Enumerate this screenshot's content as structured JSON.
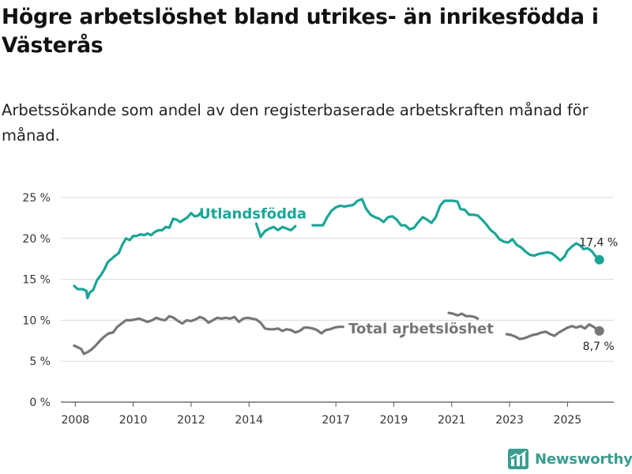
{
  "header": {
    "title": "Högre arbetslöshet bland utrikes- än inrikesfödda i Västerås",
    "subtitle": "Arbetssökande som andel av den registerbaserade arbetskraften månad för månad."
  },
  "branding": {
    "name": "Newsworthy",
    "color": "#3b9d8f",
    "icon": "newsworthy-logo-icon"
  },
  "chart_data": {
    "type": "line",
    "title": "Högre arbetslöshet bland utrikes- än inrikesfödda i Västerås",
    "subtitle": "Arbetssökande som andel av den registerbaserade arbetskraften månad för månad.",
    "xlabel": "",
    "ylabel": "",
    "x_range": [
      2007.5,
      2026.6
    ],
    "ylim": [
      0,
      25
    ],
    "grid": true,
    "y_ticks": [
      {
        "value": 0,
        "label": "0 %"
      },
      {
        "value": 5,
        "label": "5 %"
      },
      {
        "value": 10,
        "label": "10 %"
      },
      {
        "value": 15,
        "label": "15 %"
      },
      {
        "value": 20,
        "label": "20 %"
      },
      {
        "value": 25,
        "label": "25 %"
      }
    ],
    "x_ticks": [
      {
        "value": 2008,
        "label": "2008"
      },
      {
        "value": 2010,
        "label": "2010"
      },
      {
        "value": 2012,
        "label": "2012"
      },
      {
        "value": 2014,
        "label": "2014"
      },
      {
        "value": 2017,
        "label": "2017"
      },
      {
        "value": 2019,
        "label": "2019"
      },
      {
        "value": 2021,
        "label": "2021"
      },
      {
        "value": 2023,
        "label": "2023"
      },
      {
        "value": 2025,
        "label": "2025"
      }
    ],
    "series": [
      {
        "name": "Utlandsfödda",
        "color": "#1aa596",
        "end_label": "17,4 %",
        "points": [
          [
            2007.96,
            14.2
          ],
          [
            2008.08,
            13.8
          ],
          [
            2008.25,
            13.8
          ],
          [
            2008.38,
            13.6
          ],
          [
            2008.42,
            12.7
          ],
          [
            2008.5,
            13.4
          ],
          [
            2008.62,
            13.7
          ],
          [
            2008.75,
            14.9
          ],
          [
            2008.88,
            15.5
          ],
          [
            2009.0,
            16.2
          ],
          [
            2009.12,
            17.1
          ],
          [
            2009.25,
            17.5
          ],
          [
            2009.38,
            17.9
          ],
          [
            2009.5,
            18.2
          ],
          [
            2009.62,
            19.2
          ],
          [
            2009.75,
            20.0
          ],
          [
            2009.88,
            19.8
          ],
          [
            2010.0,
            20.3
          ],
          [
            2010.12,
            20.3
          ],
          [
            2010.25,
            20.5
          ],
          [
            2010.38,
            20.4
          ],
          [
            2010.5,
            20.6
          ],
          [
            2010.62,
            20.4
          ],
          [
            2010.75,
            20.8
          ],
          [
            2010.88,
            21.0
          ],
          [
            2011.0,
            21.0
          ],
          [
            2011.12,
            21.4
          ],
          [
            2011.25,
            21.3
          ],
          [
            2011.38,
            22.4
          ],
          [
            2011.5,
            22.3
          ],
          [
            2011.62,
            22.0
          ],
          [
            2011.75,
            22.3
          ],
          [
            2011.88,
            22.6
          ],
          [
            2012.0,
            23.1
          ],
          [
            2012.12,
            22.7
          ],
          [
            2012.25,
            22.8
          ],
          [
            2012.35,
            23.2
          ],
          [
            2014.25,
            21.8
          ],
          [
            2014.4,
            20.2
          ],
          [
            2014.55,
            20.9
          ],
          [
            2014.7,
            21.2
          ],
          [
            2014.85,
            21.4
          ],
          [
            2015.0,
            21.0
          ],
          [
            2015.15,
            21.4
          ],
          [
            2015.3,
            21.2
          ],
          [
            2015.45,
            21.0
          ],
          [
            2015.6,
            21.5
          ],
          [
            2016.2,
            21.6
          ],
          [
            2016.55,
            21.6
          ],
          [
            2016.7,
            22.6
          ],
          [
            2016.85,
            23.4
          ],
          [
            2017.0,
            23.8
          ],
          [
            2017.15,
            24.0
          ],
          [
            2017.3,
            23.9
          ],
          [
            2017.45,
            24.0
          ],
          [
            2017.6,
            24.1
          ],
          [
            2017.75,
            24.6
          ],
          [
            2017.9,
            24.8
          ],
          [
            2018.05,
            23.6
          ],
          [
            2018.2,
            22.9
          ],
          [
            2018.35,
            22.6
          ],
          [
            2018.5,
            22.4
          ],
          [
            2018.65,
            22.0
          ],
          [
            2018.8,
            22.6
          ],
          [
            2018.95,
            22.7
          ],
          [
            2019.1,
            22.3
          ],
          [
            2019.25,
            21.6
          ],
          [
            2019.4,
            21.6
          ],
          [
            2019.55,
            21.1
          ],
          [
            2019.7,
            21.3
          ],
          [
            2019.85,
            22.0
          ],
          [
            2020.0,
            22.6
          ],
          [
            2020.15,
            22.3
          ],
          [
            2020.3,
            21.9
          ],
          [
            2020.45,
            22.6
          ],
          [
            2020.6,
            24.0
          ],
          [
            2020.75,
            24.6
          ],
          [
            2020.9,
            24.6
          ],
          [
            2021.05,
            24.6
          ],
          [
            2021.2,
            24.5
          ],
          [
            2021.3,
            23.6
          ],
          [
            2021.45,
            23.5
          ],
          [
            2021.6,
            22.9
          ],
          [
            2021.75,
            22.9
          ],
          [
            2021.9,
            22.8
          ],
          [
            2022.05,
            22.3
          ],
          [
            2022.2,
            21.7
          ],
          [
            2022.35,
            21.0
          ],
          [
            2022.5,
            20.6
          ],
          [
            2022.65,
            19.9
          ],
          [
            2022.8,
            19.6
          ],
          [
            2022.95,
            19.5
          ],
          [
            2023.1,
            19.9
          ],
          [
            2023.25,
            19.2
          ],
          [
            2023.4,
            18.9
          ],
          [
            2023.55,
            18.4
          ],
          [
            2023.7,
            18.0
          ],
          [
            2023.85,
            17.9
          ],
          [
            2024.0,
            18.1
          ],
          [
            2024.15,
            18.2
          ],
          [
            2024.3,
            18.3
          ],
          [
            2024.45,
            18.2
          ],
          [
            2024.6,
            17.8
          ],
          [
            2024.75,
            17.3
          ],
          [
            2024.9,
            17.8
          ],
          [
            2025.0,
            18.5
          ],
          [
            2025.15,
            19.0
          ],
          [
            2025.3,
            19.4
          ],
          [
            2025.45,
            19.1
          ],
          [
            2025.55,
            18.7
          ],
          [
            2025.7,
            18.8
          ],
          [
            2025.85,
            18.4
          ],
          [
            2025.95,
            17.9
          ],
          [
            2026.05,
            17.6
          ],
          [
            2026.1,
            17.4
          ]
        ]
      },
      {
        "name": "Total arbetslöshet",
        "color": "#767676",
        "end_label": "8,7 %",
        "points": [
          [
            2007.96,
            6.9
          ],
          [
            2008.08,
            6.7
          ],
          [
            2008.2,
            6.5
          ],
          [
            2008.3,
            5.9
          ],
          [
            2008.42,
            6.1
          ],
          [
            2008.55,
            6.4
          ],
          [
            2008.7,
            6.9
          ],
          [
            2008.85,
            7.5
          ],
          [
            2009.0,
            8.0
          ],
          [
            2009.15,
            8.4
          ],
          [
            2009.3,
            8.5
          ],
          [
            2009.45,
            9.2
          ],
          [
            2009.6,
            9.6
          ],
          [
            2009.75,
            10.0
          ],
          [
            2009.9,
            10.0
          ],
          [
            2010.05,
            10.1
          ],
          [
            2010.2,
            10.2
          ],
          [
            2010.35,
            10.0
          ],
          [
            2010.5,
            9.8
          ],
          [
            2010.65,
            10.0
          ],
          [
            2010.8,
            10.3
          ],
          [
            2010.95,
            10.1
          ],
          [
            2011.1,
            10.0
          ],
          [
            2011.25,
            10.5
          ],
          [
            2011.4,
            10.3
          ],
          [
            2011.55,
            9.9
          ],
          [
            2011.7,
            9.6
          ],
          [
            2011.85,
            10.0
          ],
          [
            2012.0,
            9.9
          ],
          [
            2012.15,
            10.1
          ],
          [
            2012.3,
            10.4
          ],
          [
            2012.45,
            10.2
          ],
          [
            2012.6,
            9.7
          ],
          [
            2012.75,
            10.0
          ],
          [
            2012.9,
            10.3
          ],
          [
            2013.05,
            10.2
          ],
          [
            2013.2,
            10.3
          ],
          [
            2013.35,
            10.2
          ],
          [
            2013.5,
            10.4
          ],
          [
            2013.65,
            9.8
          ],
          [
            2013.8,
            10.2
          ],
          [
            2013.95,
            10.3
          ],
          [
            2014.1,
            10.2
          ],
          [
            2014.25,
            10.1
          ],
          [
            2014.4,
            9.7
          ],
          [
            2014.55,
            9.0
          ],
          [
            2014.7,
            8.9
          ],
          [
            2014.85,
            8.9
          ],
          [
            2015.0,
            9.0
          ],
          [
            2015.15,
            8.7
          ],
          [
            2015.3,
            8.9
          ],
          [
            2015.45,
            8.8
          ],
          [
            2015.6,
            8.5
          ],
          [
            2015.75,
            8.7
          ],
          [
            2015.9,
            9.1
          ],
          [
            2016.05,
            9.1
          ],
          [
            2016.2,
            9.0
          ],
          [
            2016.35,
            8.8
          ],
          [
            2016.5,
            8.4
          ],
          [
            2016.65,
            8.8
          ],
          [
            2016.8,
            8.9
          ],
          [
            2016.95,
            9.1
          ],
          [
            2017.1,
            9.2
          ],
          [
            2017.25,
            9.2
          ],
          [
            2019.25,
            8.0
          ],
          [
            2019.35,
            8.2
          ],
          [
            2020.9,
            10.9
          ],
          [
            2021.05,
            10.8
          ],
          [
            2021.2,
            10.6
          ],
          [
            2021.35,
            10.8
          ],
          [
            2021.5,
            10.5
          ],
          [
            2021.65,
            10.5
          ],
          [
            2021.8,
            10.4
          ],
          [
            2021.9,
            10.2
          ],
          [
            2022.9,
            8.3
          ],
          [
            2023.05,
            8.2
          ],
          [
            2023.2,
            8.0
          ],
          [
            2023.35,
            7.7
          ],
          [
            2023.5,
            7.8
          ],
          [
            2023.65,
            8.0
          ],
          [
            2023.8,
            8.2
          ],
          [
            2023.95,
            8.3
          ],
          [
            2024.1,
            8.5
          ],
          [
            2024.25,
            8.6
          ],
          [
            2024.4,
            8.3
          ],
          [
            2024.55,
            8.1
          ],
          [
            2024.7,
            8.5
          ],
          [
            2024.85,
            8.8
          ],
          [
            2025.0,
            9.1
          ],
          [
            2025.15,
            9.3
          ],
          [
            2025.3,
            9.1
          ],
          [
            2025.45,
            9.3
          ],
          [
            2025.6,
            9.0
          ],
          [
            2025.75,
            9.5
          ],
          [
            2025.9,
            9.2
          ],
          [
            2026.05,
            8.8
          ],
          [
            2026.1,
            8.7
          ]
        ]
      }
    ]
  }
}
